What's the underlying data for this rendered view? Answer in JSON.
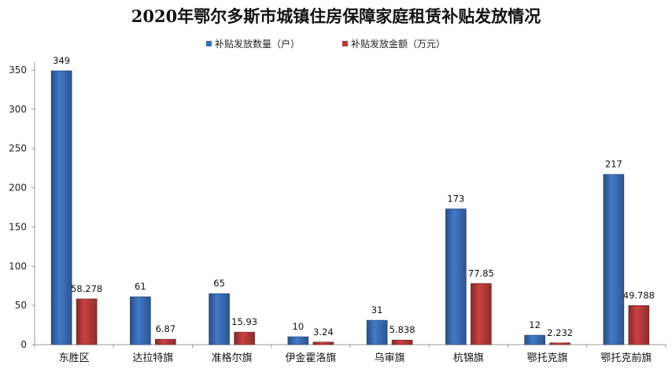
{
  "chart_data": {
    "type": "bar",
    "title": "2020年鄂尔多斯市城镇住房保障家庭租赁补贴发放情况",
    "xlabel": "",
    "ylabel": "",
    "ylim": [
      0,
      350
    ],
    "yticks": [
      0,
      50,
      100,
      150,
      200,
      250,
      300,
      350
    ],
    "grid": false,
    "legend_position": "top-center",
    "categories": [
      "东胜区",
      "达拉特旗",
      "准格尔旗",
      "伊金霍洛旗",
      "乌审旗",
      "杭锦旗",
      "鄂托克旗",
      "鄂托克前旗"
    ],
    "series": [
      {
        "name": "补贴发放数量（户）",
        "color": "#3a6db5",
        "values": [
          349,
          61,
          65,
          10,
          31,
          173,
          12,
          217
        ],
        "labels": [
          "349",
          "61",
          "65",
          "10",
          "31",
          "173",
          "12",
          "217"
        ]
      },
      {
        "name": "补贴发放金额（万元）",
        "color": "#b53a3a",
        "values": [
          58.278,
          6.87,
          15.93,
          3.24,
          5.838,
          77.85,
          2.232,
          49.788
        ],
        "labels": [
          "58.278",
          "6.87",
          "15.93",
          "3.24",
          "5.838",
          "77.85",
          "2.232",
          "49.788"
        ]
      }
    ]
  }
}
